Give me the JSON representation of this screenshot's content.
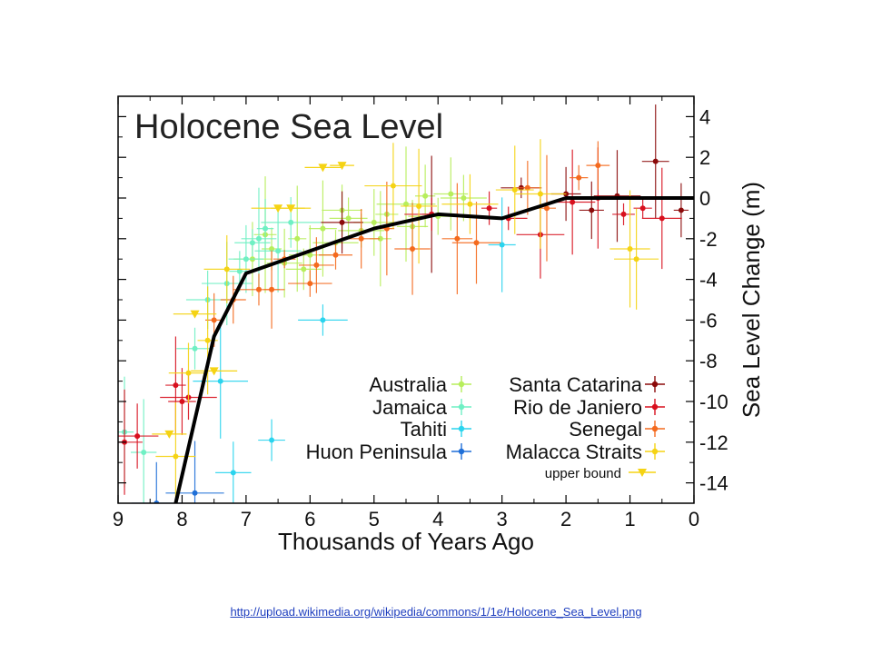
{
  "source_link": "http://upload.wikimedia.org/wikipedia/commons/1/1e/Holocene_Sea_Level.png",
  "chart_data": {
    "type": "scatter",
    "title": "Holocene Sea Level",
    "xlabel": "Thousands of Years Ago",
    "ylabel": "Sea Level Change (m)",
    "xlim": [
      9,
      0
    ],
    "ylim": [
      -15,
      5
    ],
    "x_ticks": [
      9,
      8,
      7,
      6,
      5,
      4,
      3,
      2,
      1,
      0
    ],
    "y_ticks": [
      4,
      2,
      0,
      -2,
      -4,
      -6,
      -8,
      -10,
      -12,
      -14
    ],
    "x_tick_labels": [
      "9",
      "8",
      "7",
      "6",
      "5",
      "4",
      "3",
      "2",
      "1",
      "0"
    ],
    "y_tick_labels": [
      "4",
      "2",
      "0",
      "-2",
      "-4",
      "-6",
      "-8",
      "-10",
      "-12",
      "-14"
    ],
    "y_axis_side": "right",
    "grid": false,
    "legend_placement": "bottom-right",
    "trend": {
      "color": "#000000",
      "x": [
        8.1,
        7.5,
        7.0,
        6.0,
        5.0,
        4.0,
        3.0,
        2.0,
        1.0,
        0.0
      ],
      "y": [
        -15,
        -6.8,
        -3.7,
        -2.6,
        -1.5,
        -0.8,
        -1.0,
        0.0,
        0.0,
        0.0
      ]
    },
    "series": [
      {
        "name": "Australia",
        "color": "#b7ee5c",
        "marker": "circle",
        "x": [
          6.9,
          6.6,
          6.4,
          6.2,
          6.0,
          5.8,
          5.6,
          5.4,
          5.2,
          5.0,
          4.8,
          4.5,
          4.2,
          4.0,
          3.8,
          3.6,
          6.7,
          6.1,
          5.5,
          4.9,
          4.4
        ],
        "y": [
          -3.0,
          -2.5,
          -3.2,
          -2.0,
          -2.8,
          -1.5,
          -2.2,
          -1.0,
          -1.6,
          -1.2,
          -0.8,
          -0.3,
          0.1,
          -0.9,
          0.2,
          0.0,
          -1.8,
          -3.5,
          -0.6,
          -2.0,
          -1.4
        ]
      },
      {
        "name": "Jamaica",
        "color": "#6ff0c4",
        "marker": "circle",
        "x": [
          8.9,
          8.6,
          7.8,
          7.6,
          7.3,
          7.1,
          6.9,
          6.7,
          6.5,
          6.3,
          7.0,
          6.8
        ],
        "y": [
          -11.5,
          -12.5,
          -7.4,
          -5.0,
          -4.2,
          -3.6,
          -2.2,
          -1.5,
          -2.6,
          -1.2,
          -3.0,
          -2.0
        ]
      },
      {
        "name": "Tahiti",
        "color": "#2ad4ee",
        "marker": "circle",
        "x": [
          7.2,
          6.6,
          5.8,
          3.0,
          7.4
        ],
        "y": [
          -13.5,
          -11.9,
          -6.0,
          -2.3,
          -9.0
        ]
      },
      {
        "name": "Huon Peninsula",
        "color": "#1f6fd8",
        "marker": "circle",
        "x": [
          7.8,
          8.4
        ],
        "y": [
          -14.5,
          -15.0
        ]
      },
      {
        "name": "Santa Catarina",
        "color": "#8b0a0a",
        "marker": "circle",
        "x": [
          2.7,
          2.0,
          1.6,
          1.2,
          0.6,
          0.2,
          5.5,
          4.1
        ],
        "y": [
          0.5,
          0.2,
          -0.6,
          0.1,
          1.8,
          -0.6,
          -1.2,
          -0.8
        ]
      },
      {
        "name": "Rio de Janiero",
        "color": "#d8101e",
        "marker": "circle",
        "x": [
          8.9,
          8.7,
          8.1,
          7.9,
          3.2,
          2.4,
          1.9,
          1.5,
          1.1,
          0.8,
          0.5,
          4.1,
          2.9,
          8.0
        ],
        "y": [
          -12.0,
          -11.7,
          -9.2,
          -9.8,
          -0.5,
          -1.8,
          -0.2,
          0.0,
          -0.8,
          -0.5,
          -1.0,
          -0.8,
          -1.0,
          -10.0
        ]
      },
      {
        "name": "Senegal",
        "color": "#f46a1e",
        "marker": "circle",
        "x": [
          7.5,
          7.2,
          6.8,
          6.4,
          6.0,
          5.6,
          5.2,
          4.8,
          4.4,
          3.7,
          3.4,
          2.6,
          2.3,
          1.8,
          1.5,
          6.6,
          5.9
        ],
        "y": [
          -6.0,
          -5.0,
          -4.5,
          -3.0,
          -4.2,
          -2.8,
          -2.0,
          -1.5,
          -2.5,
          -2.0,
          -2.2,
          0.5,
          -0.5,
          1.0,
          1.6,
          -4.5,
          -3.3
        ]
      },
      {
        "name": "Malacca Straits",
        "color": "#f5d313",
        "marker": "circle",
        "x": [
          8.1,
          7.9,
          7.6,
          7.3,
          4.7,
          4.3,
          3.5,
          2.8,
          2.4,
          1.0,
          0.9
        ],
        "y": [
          -12.7,
          -8.6,
          -7.0,
          -3.5,
          0.6,
          -0.4,
          -0.3,
          0.4,
          0.2,
          -2.5,
          -3.0
        ]
      }
    ],
    "upper_bound": {
      "name": "upper bound",
      "color": "#f5d313",
      "marker": "triangle-down",
      "x": [
        5.8,
        5.5,
        6.5,
        6.3,
        7.8,
        8.2,
        7.5
      ],
      "y": [
        1.5,
        1.6,
        -0.5,
        -0.5,
        -5.7,
        -11.6,
        -8.5
      ]
    }
  }
}
